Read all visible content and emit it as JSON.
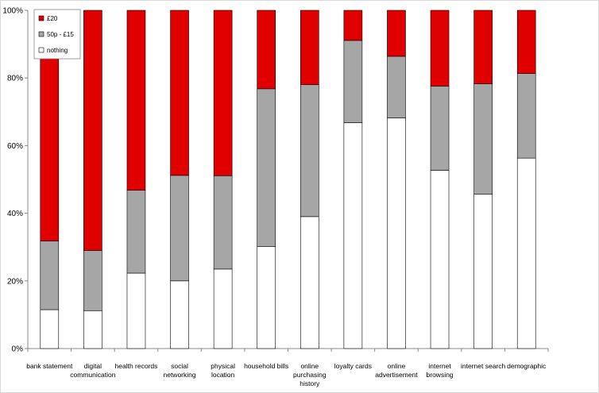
{
  "chart_data": {
    "type": "bar",
    "stacked": true,
    "percent": true,
    "categories": [
      "bank statement",
      "digital communication",
      "health records",
      "social networking",
      "physical location",
      "household bills",
      "online purchasing history",
      "loyalty cards",
      "online advertisement",
      "internet browsing",
      "internet search",
      "demographic"
    ],
    "category_lines": [
      [
        "bank statement"
      ],
      [
        "digital",
        "communication"
      ],
      [
        "health records"
      ],
      [
        "social",
        "networking"
      ],
      [
        "physical",
        "location"
      ],
      [
        "household bills"
      ],
      [
        "online",
        "purchasing",
        "history"
      ],
      [
        "loyalty cards"
      ],
      [
        "online",
        "advertisement"
      ],
      [
        "internet",
        "browsing"
      ],
      [
        "internet search"
      ],
      [
        "demographic"
      ]
    ],
    "series": [
      {
        "name": "nothing",
        "color": "#ffffff",
        "values": [
          11.5,
          11.2,
          22.3,
          20.0,
          23.5,
          30.2,
          39.0,
          66.8,
          68.2,
          52.7,
          45.6,
          56.3
        ]
      },
      {
        "name": "50p - £15",
        "color": "#a6a6a6",
        "values": [
          20.3,
          17.8,
          24.5,
          31.2,
          27.6,
          46.6,
          39.0,
          24.3,
          18.2,
          24.9,
          32.7,
          25.0
        ]
      },
      {
        "name": "£20",
        "color": "#e00000",
        "values": [
          68.2,
          71.0,
          53.2,
          48.8,
          48.9,
          23.2,
          22.0,
          8.9,
          13.6,
          22.4,
          21.7,
          18.7
        ]
      }
    ],
    "legend_order": [
      "£20",
      "50p - £15",
      "nothing"
    ],
    "legend_placement": "top-left",
    "ylim": [
      0,
      100
    ],
    "yticks": [
      "0%",
      "20%",
      "40%",
      "60%",
      "80%",
      "100%"
    ],
    "grid": false,
    "title": "",
    "xlabel": "",
    "ylabel": ""
  }
}
